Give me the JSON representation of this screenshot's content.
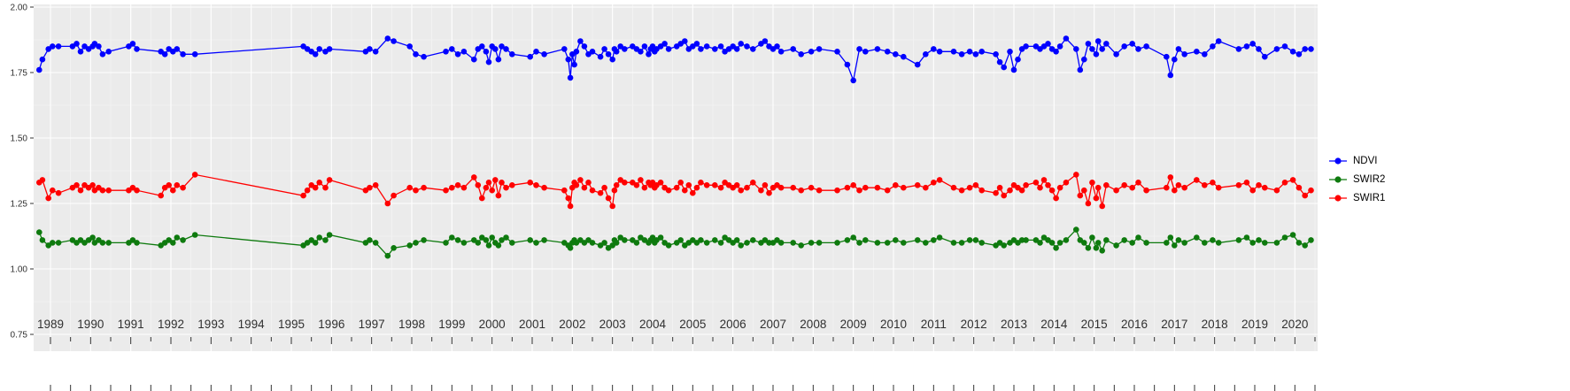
{
  "chart_data": {
    "type": "line",
    "title": "",
    "xlabel": "",
    "ylabel": "",
    "xlim": [
      1988.58,
      2020.57
    ],
    "ylim": [
      0.595,
      2.01
    ],
    "grid": true,
    "legend_position": "right",
    "x_ticks": [
      1989,
      1990,
      1991,
      1992,
      1993,
      1994,
      1995,
      1996,
      1997,
      1998,
      1999,
      2000,
      2001,
      2002,
      2003,
      2004,
      2005,
      2006,
      2007,
      2008,
      2009,
      2010,
      2011,
      2012,
      2013,
      2014,
      2015,
      2016,
      2017,
      2018,
      2019,
      2020
    ],
    "y_ticks": [
      {
        "v": 2.0,
        "label": "2.00"
      },
      {
        "v": 1.75,
        "label": "1.75"
      },
      {
        "v": 1.5,
        "label": "1.50"
      },
      {
        "v": 1.25,
        "label": "1.25"
      },
      {
        "v": 1.0,
        "label": "1.00"
      },
      {
        "v": 0.75,
        "label": "0.75"
      }
    ],
    "y_minor": [
      1.875,
      1.625,
      1.375,
      1.125,
      0.875
    ],
    "colors": {
      "panel_bg": "#EBEBEB",
      "grid_major": "#FFFFFF",
      "grid_minor": "#F6F6F6",
      "axis_text": "#303030",
      "tick": "#333333"
    },
    "x": [
      1988.72,
      1988.8,
      1988.95,
      1989.05,
      1989.2,
      1989.55,
      1989.65,
      1989.75,
      1989.85,
      1989.95,
      1990.05,
      1990.1,
      1990.2,
      1990.3,
      1990.45,
      1990.95,
      1991.05,
      1991.15,
      1991.75,
      1991.85,
      1991.95,
      1992.05,
      1992.15,
      1992.3,
      1992.6,
      1995.3,
      1995.4,
      1995.5,
      1995.6,
      1995.7,
      1995.85,
      1995.95,
      1996.85,
      1996.95,
      1997.1,
      1997.4,
      1997.55,
      1997.95,
      1998.1,
      1998.3,
      1998.85,
      1999.0,
      1999.15,
      1999.3,
      1999.55,
      1999.65,
      1999.75,
      1999.85,
      1999.92,
      2000.0,
      2000.08,
      2000.16,
      2000.24,
      2000.35,
      2000.5,
      2000.95,
      2001.1,
      2001.3,
      2001.8,
      2001.9,
      2001.95,
      2002.0,
      2002.05,
      2002.1,
      2002.2,
      2002.3,
      2002.4,
      2002.5,
      2002.7,
      2002.8,
      2002.9,
      2003.0,
      2003.05,
      2003.1,
      2003.2,
      2003.3,
      2003.5,
      2003.6,
      2003.7,
      2003.8,
      2003.9,
      2003.95,
      2004.0,
      2004.05,
      2004.1,
      2004.2,
      2004.3,
      2004.4,
      2004.6,
      2004.7,
      2004.8,
      2004.9,
      2005.0,
      2005.1,
      2005.2,
      2005.35,
      2005.55,
      2005.7,
      2005.8,
      2005.9,
      2006.0,
      2006.1,
      2006.2,
      2006.35,
      2006.5,
      2006.7,
      2006.8,
      2006.9,
      2007.0,
      2007.1,
      2007.2,
      2007.5,
      2007.7,
      2007.95,
      2008.15,
      2008.6,
      2008.85,
      2009.0,
      2009.15,
      2009.3,
      2009.6,
      2009.85,
      2010.05,
      2010.25,
      2010.6,
      2010.8,
      2011.0,
      2011.15,
      2011.5,
      2011.7,
      2011.9,
      2012.05,
      2012.2,
      2012.55,
      2012.65,
      2012.75,
      2012.9,
      2013.0,
      2013.1,
      2013.2,
      2013.3,
      2013.55,
      2013.65,
      2013.75,
      2013.85,
      2013.95,
      2014.05,
      2014.15,
      2014.3,
      2014.55,
      2014.65,
      2014.75,
      2014.85,
      2014.95,
      2015.05,
      2015.1,
      2015.2,
      2015.3,
      2015.55,
      2015.75,
      2015.95,
      2016.1,
      2016.3,
      2016.8,
      2016.9,
      2017.0,
      2017.1,
      2017.25,
      2017.55,
      2017.75,
      2017.95,
      2018.1,
      2018.6,
      2018.8,
      2018.95,
      2019.1,
      2019.25,
      2019.55,
      2019.75,
      2019.95,
      2020.1,
      2020.25,
      2020.4
    ],
    "series": [
      {
        "name": "NDVI",
        "color": "#0000FF",
        "values": [
          1.76,
          1.8,
          1.84,
          1.85,
          1.85,
          1.85,
          1.86,
          1.83,
          1.85,
          1.84,
          1.85,
          1.86,
          1.85,
          1.82,
          1.83,
          1.85,
          1.86,
          1.84,
          1.83,
          1.82,
          1.84,
          1.83,
          1.84,
          1.82,
          1.82,
          1.85,
          1.84,
          1.83,
          1.82,
          1.84,
          1.83,
          1.84,
          1.83,
          1.84,
          1.83,
          1.88,
          1.87,
          1.85,
          1.82,
          1.81,
          1.83,
          1.84,
          1.82,
          1.83,
          1.8,
          1.84,
          1.85,
          1.83,
          1.79,
          1.85,
          1.84,
          1.8,
          1.85,
          1.84,
          1.82,
          1.81,
          1.83,
          1.82,
          1.84,
          1.8,
          1.73,
          1.82,
          1.78,
          1.83,
          1.87,
          1.85,
          1.82,
          1.83,
          1.81,
          1.84,
          1.82,
          1.8,
          1.84,
          1.83,
          1.85,
          1.84,
          1.85,
          1.84,
          1.83,
          1.85,
          1.82,
          1.84,
          1.85,
          1.83,
          1.84,
          1.85,
          1.86,
          1.84,
          1.85,
          1.86,
          1.87,
          1.84,
          1.85,
          1.86,
          1.84,
          1.85,
          1.84,
          1.85,
          1.83,
          1.84,
          1.85,
          1.84,
          1.86,
          1.85,
          1.84,
          1.86,
          1.87,
          1.85,
          1.84,
          1.85,
          1.83,
          1.84,
          1.82,
          1.83,
          1.84,
          1.83,
          1.78,
          1.72,
          1.84,
          1.83,
          1.84,
          1.83,
          1.82,
          1.81,
          1.78,
          1.82,
          1.84,
          1.83,
          1.83,
          1.82,
          1.83,
          1.82,
          1.83,
          1.82,
          1.79,
          1.77,
          1.83,
          1.76,
          1.8,
          1.84,
          1.85,
          1.85,
          1.84,
          1.85,
          1.86,
          1.84,
          1.83,
          1.85,
          1.88,
          1.84,
          1.76,
          1.8,
          1.86,
          1.84,
          1.82,
          1.87,
          1.84,
          1.86,
          1.82,
          1.85,
          1.86,
          1.84,
          1.85,
          1.81,
          1.74,
          1.8,
          1.84,
          1.82,
          1.83,
          1.82,
          1.85,
          1.87,
          1.84,
          1.85,
          1.86,
          1.84,
          1.81,
          1.84,
          1.85,
          1.83,
          1.82,
          1.84,
          1.84
        ]
      },
      {
        "name": "SWIR2",
        "color": "#0E7A0E",
        "values": [
          1.14,
          1.11,
          1.09,
          1.1,
          1.1,
          1.11,
          1.1,
          1.11,
          1.1,
          1.11,
          1.12,
          1.1,
          1.11,
          1.1,
          1.1,
          1.1,
          1.11,
          1.1,
          1.09,
          1.1,
          1.11,
          1.1,
          1.12,
          1.11,
          1.13,
          1.09,
          1.1,
          1.11,
          1.1,
          1.12,
          1.11,
          1.13,
          1.1,
          1.11,
          1.1,
          1.05,
          1.08,
          1.09,
          1.1,
          1.11,
          1.1,
          1.12,
          1.11,
          1.1,
          1.11,
          1.1,
          1.12,
          1.11,
          1.09,
          1.12,
          1.1,
          1.09,
          1.11,
          1.12,
          1.1,
          1.11,
          1.1,
          1.11,
          1.1,
          1.09,
          1.08,
          1.1,
          1.11,
          1.1,
          1.11,
          1.1,
          1.11,
          1.1,
          1.09,
          1.1,
          1.08,
          1.09,
          1.11,
          1.1,
          1.12,
          1.11,
          1.11,
          1.1,
          1.12,
          1.11,
          1.1,
          1.11,
          1.12,
          1.1,
          1.11,
          1.12,
          1.1,
          1.09,
          1.1,
          1.11,
          1.09,
          1.1,
          1.11,
          1.1,
          1.11,
          1.1,
          1.11,
          1.1,
          1.12,
          1.11,
          1.1,
          1.11,
          1.09,
          1.1,
          1.11,
          1.1,
          1.11,
          1.1,
          1.1,
          1.11,
          1.1,
          1.1,
          1.09,
          1.1,
          1.1,
          1.1,
          1.11,
          1.12,
          1.1,
          1.11,
          1.1,
          1.1,
          1.11,
          1.1,
          1.11,
          1.1,
          1.11,
          1.12,
          1.1,
          1.1,
          1.11,
          1.11,
          1.1,
          1.09,
          1.1,
          1.09,
          1.1,
          1.11,
          1.1,
          1.11,
          1.11,
          1.11,
          1.1,
          1.12,
          1.11,
          1.1,
          1.08,
          1.1,
          1.11,
          1.15,
          1.11,
          1.1,
          1.08,
          1.12,
          1.08,
          1.1,
          1.07,
          1.11,
          1.09,
          1.11,
          1.1,
          1.12,
          1.1,
          1.1,
          1.12,
          1.09,
          1.11,
          1.1,
          1.12,
          1.1,
          1.11,
          1.1,
          1.11,
          1.12,
          1.1,
          1.11,
          1.1,
          1.1,
          1.12,
          1.13,
          1.1,
          1.09,
          1.11
        ]
      },
      {
        "name": "SWIR1",
        "color": "#FF0000",
        "values": [
          1.33,
          1.34,
          1.27,
          1.3,
          1.29,
          1.31,
          1.32,
          1.3,
          1.32,
          1.31,
          1.32,
          1.3,
          1.31,
          1.3,
          1.3,
          1.3,
          1.31,
          1.3,
          1.28,
          1.31,
          1.32,
          1.3,
          1.32,
          1.31,
          1.36,
          1.28,
          1.3,
          1.32,
          1.31,
          1.33,
          1.31,
          1.34,
          1.3,
          1.31,
          1.32,
          1.25,
          1.28,
          1.31,
          1.3,
          1.31,
          1.3,
          1.31,
          1.32,
          1.31,
          1.35,
          1.32,
          1.27,
          1.31,
          1.33,
          1.3,
          1.34,
          1.28,
          1.33,
          1.31,
          1.32,
          1.33,
          1.32,
          1.31,
          1.3,
          1.27,
          1.24,
          1.31,
          1.33,
          1.32,
          1.34,
          1.31,
          1.33,
          1.3,
          1.29,
          1.31,
          1.27,
          1.24,
          1.3,
          1.32,
          1.34,
          1.33,
          1.33,
          1.32,
          1.34,
          1.31,
          1.33,
          1.32,
          1.33,
          1.31,
          1.32,
          1.33,
          1.31,
          1.3,
          1.31,
          1.33,
          1.3,
          1.32,
          1.29,
          1.31,
          1.33,
          1.32,
          1.32,
          1.31,
          1.33,
          1.32,
          1.31,
          1.32,
          1.3,
          1.31,
          1.33,
          1.3,
          1.32,
          1.29,
          1.31,
          1.32,
          1.31,
          1.31,
          1.3,
          1.31,
          1.3,
          1.3,
          1.31,
          1.32,
          1.3,
          1.31,
          1.31,
          1.3,
          1.32,
          1.31,
          1.32,
          1.31,
          1.33,
          1.34,
          1.31,
          1.3,
          1.31,
          1.32,
          1.3,
          1.29,
          1.31,
          1.28,
          1.3,
          1.32,
          1.31,
          1.3,
          1.32,
          1.33,
          1.31,
          1.34,
          1.32,
          1.3,
          1.27,
          1.31,
          1.33,
          1.36,
          1.28,
          1.3,
          1.25,
          1.33,
          1.27,
          1.31,
          1.24,
          1.32,
          1.3,
          1.32,
          1.31,
          1.33,
          1.3,
          1.31,
          1.35,
          1.3,
          1.32,
          1.31,
          1.34,
          1.32,
          1.33,
          1.31,
          1.32,
          1.33,
          1.3,
          1.32,
          1.31,
          1.3,
          1.33,
          1.34,
          1.31,
          1.28,
          1.3
        ]
      }
    ],
    "legend": {
      "entries": [
        {
          "label": "NDVI",
          "color": "#0000FF"
        },
        {
          "label": "SWIR2",
          "color": "#0E7A0E"
        },
        {
          "label": "SWIR1",
          "color": "#FF0000"
        }
      ]
    }
  }
}
